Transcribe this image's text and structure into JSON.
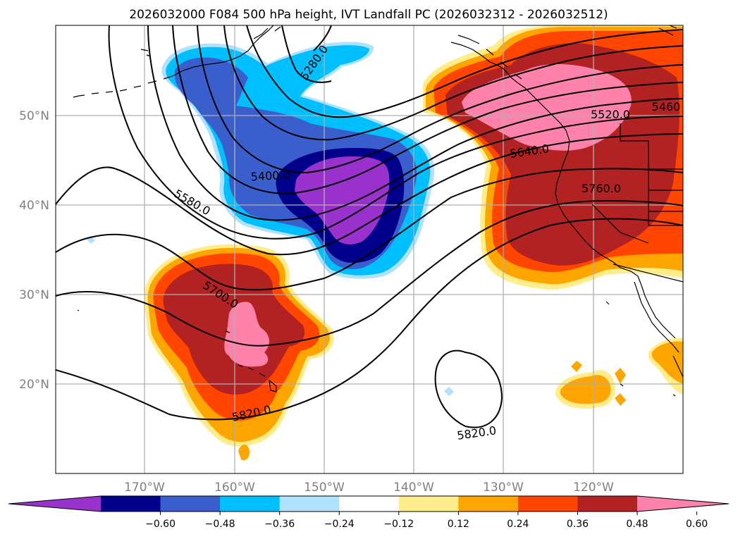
{
  "title": "2026032000 F084 500 hPa height, IVT Landfall PC (2026032312 - 2026032512)",
  "lat_labels": [
    "50°N",
    "40°N",
    "30°N",
    "20°N"
  ],
  "lon_labels": [
    "170°W",
    "160°W",
    "150°W",
    "140°W",
    "130°W",
    "120°W"
  ],
  "contour_labels": [
    "5460",
    "5280.0",
    "5520.0",
    "5640.0",
    "5400.0",
    "5760.0",
    "5580.0",
    "5700.0",
    "5820.0",
    "5820.0"
  ],
  "colorbar": {
    "tick_labels": [
      "−0.60",
      "−0.48",
      "−0.36",
      "−0.24",
      "−0.12",
      "0.12",
      "0.24",
      "0.36",
      "0.48",
      "0.60"
    ],
    "colors": [
      "#9932cc",
      "#00008b",
      "#3a5fcd",
      "#00bfff",
      "#b0e2ff",
      "#ffffff",
      "#ffec8b",
      "#ffa500",
      "#ff4500",
      "#b22222",
      "#ff82ab"
    ]
  },
  "colors": {
    "strong_negative": "#9932cc",
    "negative": "#00008b",
    "moderate_negative": "#3a5fcd",
    "weak_negative": "#00bfff",
    "slight_negative": "#b0e2ff",
    "neutral": "#ffffff",
    "slight_positive": "#ffec8b",
    "weak_positive": "#ffa500",
    "moderate_positive": "#ff4500",
    "positive": "#b22222",
    "strong_positive": "#ff82ab"
  }
}
